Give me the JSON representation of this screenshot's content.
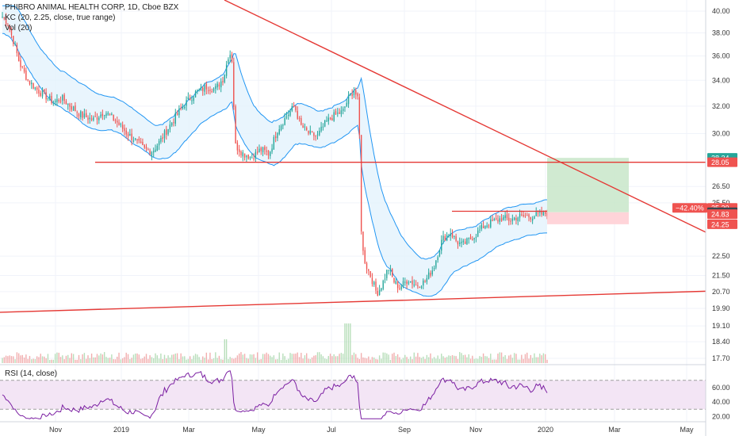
{
  "legend": {
    "title": "PHIBRO ANIMAL HEALTH CORP, 1D, Cboe BZX",
    "kc": "KC (20, 2.25, close, true range)",
    "vol": "Vol (20)",
    "rsi": "RSI (14, close)"
  },
  "colors": {
    "up": "#26a69a",
    "down": "#ef5350",
    "channel_line": "#2196f3",
    "channel_fill": "#e3f2fd",
    "trendline": "#e53935",
    "rsi_line": "#7b1fa2",
    "rsi_fill": "#f3e5f5",
    "badge_green": "#26a69a",
    "badge_red": "#ef5350",
    "badge_dark": "#37474f",
    "target_zone": "#c8e6c9",
    "stop_zone": "#ffcdd2"
  },
  "chart_data": {
    "type": "candlestick",
    "title": "PHIBRO ANIMAL HEALTH CORP, 1D, Cboe BZX",
    "price_axis": {
      "ticks": [
        "40.00",
        "38.00",
        "36.00",
        "34.00",
        "32.00",
        "30.00",
        "26.50",
        "25.50",
        "22.50",
        "21.50",
        "20.70",
        "19.90",
        "19.10",
        "18.40",
        "17.70"
      ],
      "ylim": [
        17.7,
        40.6
      ],
      "scale": "log"
    },
    "rsi_axis": {
      "ticks": [
        "60.00",
        "40.00",
        "20.00"
      ],
      "ylim": [
        15,
        85
      ],
      "band": [
        30,
        70
      ]
    },
    "time_axis": {
      "labels": [
        "Nov",
        "2019",
        "Mar",
        "May",
        "Jul",
        "Sep",
        "Nov",
        "2020",
        "Mar",
        "May"
      ]
    },
    "price_path": [
      [
        0,
        39.5
      ],
      [
        0.01,
        38.8
      ],
      [
        0.02,
        37.2
      ],
      [
        0.03,
        35.4
      ],
      [
        0.045,
        34.0
      ],
      [
        0.06,
        33.3
      ],
      [
        0.075,
        32.8
      ],
      [
        0.09,
        32.3
      ],
      [
        0.105,
        32.6
      ],
      [
        0.12,
        32.0
      ],
      [
        0.14,
        31.3
      ],
      [
        0.16,
        31.0
      ],
      [
        0.18,
        31.6
      ],
      [
        0.2,
        30.9
      ],
      [
        0.22,
        30.0
      ],
      [
        0.235,
        29.5
      ],
      [
        0.25,
        28.9
      ],
      [
        0.265,
        28.8
      ],
      [
        0.28,
        29.6
      ],
      [
        0.3,
        30.9
      ],
      [
        0.32,
        32.1
      ],
      [
        0.34,
        33.0
      ],
      [
        0.36,
        33.5
      ],
      [
        0.375,
        33.3
      ],
      [
        0.39,
        34.2
      ],
      [
        0.4,
        36.4
      ],
      [
        0.405,
        35.6
      ],
      [
        0.41,
        29.2
      ],
      [
        0.425,
        28.6
      ],
      [
        0.44,
        28.4
      ],
      [
        0.455,
        28.9
      ],
      [
        0.47,
        28.6
      ],
      [
        0.485,
        30.3
      ],
      [
        0.5,
        31.2
      ],
      [
        0.515,
        32.0
      ],
      [
        0.525,
        30.6
      ],
      [
        0.54,
        30.0
      ],
      [
        0.555,
        29.8
      ],
      [
        0.57,
        30.8
      ],
      [
        0.585,
        31.3
      ],
      [
        0.6,
        31.6
      ],
      [
        0.61,
        32.6
      ],
      [
        0.62,
        33.3
      ],
      [
        0.628,
        32.2
      ],
      [
        0.633,
        23.1
      ],
      [
        0.64,
        22.1
      ],
      [
        0.65,
        21.4
      ],
      [
        0.66,
        20.6
      ],
      [
        0.67,
        21.1
      ],
      [
        0.68,
        21.9
      ],
      [
        0.69,
        21.2
      ],
      [
        0.7,
        20.9
      ],
      [
        0.715,
        21.3
      ],
      [
        0.73,
        21.0
      ],
      [
        0.745,
        21.2
      ],
      [
        0.76,
        21.9
      ],
      [
        0.775,
        23.4
      ],
      [
        0.79,
        23.8
      ],
      [
        0.8,
        23.3
      ],
      [
        0.81,
        23.1
      ],
      [
        0.82,
        23.3
      ],
      [
        0.835,
        23.7
      ],
      [
        0.85,
        24.2
      ],
      [
        0.865,
        24.4
      ],
      [
        0.88,
        24.6
      ],
      [
        0.895,
        24.5
      ],
      [
        0.91,
        24.7
      ],
      [
        0.93,
        24.7
      ],
      [
        0.945,
        24.8
      ],
      [
        0.96,
        24.9
      ]
    ],
    "last_price": "24.94",
    "trendlines": [
      {
        "name": "descending resistance",
        "from": [
          "Oct",
          42.0
        ],
        "to": [
          "Apr",
          23.8
        ]
      },
      {
        "name": "horizontal support",
        "value": 28.05
      },
      {
        "name": "ascending support",
        "from": [
          "Oct",
          19.7
        ],
        "to": [
          "May",
          20.8
        ]
      },
      {
        "name": "entry level",
        "value": 25.0
      }
    ],
    "position": {
      "target": "28.34",
      "stop": "24.25",
      "entry": "24.94",
      "pct_label": "−42.40%",
      "pct_price": "25.20",
      "level_a": "28.05",
      "level_b": "24.83"
    }
  }
}
